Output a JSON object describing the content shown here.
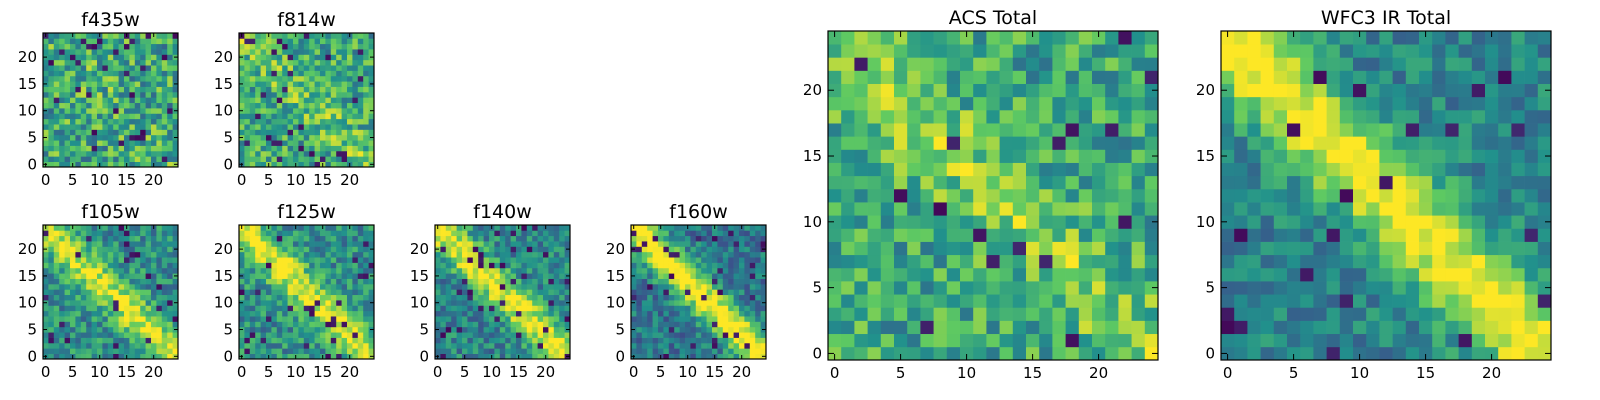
{
  "figure": {
    "colormap": [
      "#440154",
      "#3b528b",
      "#21918c",
      "#5ec962",
      "#fde725"
    ],
    "background": "#ffffff"
  },
  "chart_data": [
    {
      "type": "heatmap",
      "title": "f435w",
      "grid_size": 25,
      "xlim": [
        0,
        24
      ],
      "ylim": [
        0,
        24
      ],
      "xticks": [
        "0",
        "5",
        "10",
        "15",
        "20"
      ],
      "yticks": [
        "0",
        "5",
        "10",
        "15",
        "20"
      ],
      "pattern": "uniform noise, no visible structure",
      "noise": 0.55,
      "diag": 0.05,
      "band": 0.6,
      "dark_frac": 0.05
    },
    {
      "type": "heatmap",
      "title": "f814w",
      "grid_size": 25,
      "xlim": [
        0,
        24
      ],
      "ylim": [
        0,
        24
      ],
      "xticks": [
        "0",
        "5",
        "10",
        "15",
        "20"
      ],
      "yticks": [
        "0",
        "5",
        "10",
        "15",
        "20"
      ],
      "pattern": "noise with faint diagonal",
      "noise": 0.5,
      "diag": 0.15,
      "band": 0.6,
      "dark_frac": 0.05
    },
    {
      "type": "heatmap",
      "title": "f105w",
      "grid_size": 25,
      "xlim": [
        0,
        24
      ],
      "ylim": [
        0,
        24
      ],
      "xticks": [
        "0",
        "5",
        "10",
        "15",
        "20"
      ],
      "yticks": [
        "0",
        "5",
        "10",
        "15",
        "20"
      ],
      "pattern": "bright diagonal band top-left to bottom-right",
      "noise": 0.4,
      "diag": 0.45,
      "band": 0.5,
      "dark_frac": 0.05
    },
    {
      "type": "heatmap",
      "title": "f125w",
      "grid_size": 25,
      "xlim": [
        0,
        24
      ],
      "ylim": [
        0,
        24
      ],
      "xticks": [
        "0",
        "5",
        "10",
        "15",
        "20"
      ],
      "yticks": [
        "0",
        "5",
        "10",
        "15",
        "20"
      ],
      "pattern": "bright diagonal band",
      "noise": 0.4,
      "diag": 0.5,
      "band": 0.5,
      "dark_frac": 0.05
    },
    {
      "type": "heatmap",
      "title": "f140w",
      "grid_size": 25,
      "xlim": [
        0,
        24
      ],
      "ylim": [
        0,
        24
      ],
      "xticks": [
        "0",
        "5",
        "10",
        "15",
        "20"
      ],
      "yticks": [
        "0",
        "5",
        "10",
        "15",
        "20"
      ],
      "pattern": "bright diagonal band on darker background",
      "noise": 0.38,
      "diag": 0.55,
      "band": 0.45,
      "dark_frac": 0.06
    },
    {
      "type": "heatmap",
      "title": "f160w",
      "grid_size": 25,
      "xlim": [
        0,
        24
      ],
      "ylim": [
        0,
        24
      ],
      "xticks": [
        "0",
        "5",
        "10",
        "15",
        "20"
      ],
      "yticks": [
        "0",
        "5",
        "10",
        "15",
        "20"
      ],
      "pattern": "narrow bright diagonal band on dark background",
      "noise": 0.35,
      "diag": 0.65,
      "band": 0.4,
      "dark_frac": 0.08
    },
    {
      "type": "heatmap",
      "title": "ACS Total",
      "grid_size": 25,
      "xlim": [
        0,
        24
      ],
      "ylim": [
        0,
        24
      ],
      "xticks": [
        "0",
        "5",
        "10",
        "15",
        "20"
      ],
      "yticks": [
        "0",
        "5",
        "10",
        "15",
        "20"
      ],
      "pattern": "mostly bright noise, faint diagonal",
      "noise": 0.45,
      "diag": 0.2,
      "band": 0.6,
      "dark_frac": 0.03
    },
    {
      "type": "heatmap",
      "title": "WFC3 IR Total",
      "grid_size": 25,
      "xlim": [
        0,
        24
      ],
      "ylim": [
        0,
        24
      ],
      "xticks": [
        "0",
        "5",
        "10",
        "15",
        "20"
      ],
      "yticks": [
        "0",
        "5",
        "10",
        "15",
        "20"
      ],
      "pattern": "strong bright diagonal band",
      "noise": 0.3,
      "diag": 0.6,
      "band": 0.45,
      "dark_frac": 0.04
    }
  ]
}
